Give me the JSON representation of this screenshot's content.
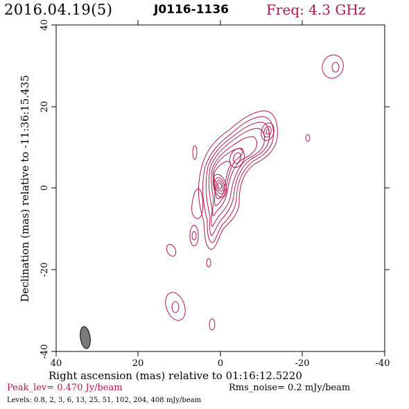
{
  "header": {
    "date": "2016.04.19(5)",
    "source": "J0116-1136",
    "frequency": "Freq: 4.3 GHz"
  },
  "axes": {
    "xlabel": "Right ascension (mas) relative to 01:16:12.5220",
    "ylabel": "Declination (mas) relative to -11:36:15.435",
    "x_ticks": [
      "40",
      "20",
      "0",
      "-20",
      "-40"
    ],
    "y_ticks": [
      "40",
      "20",
      "0",
      "-20",
      "-40"
    ]
  },
  "footer": {
    "peak": "Peak_lev=  0.470 Jy/beam",
    "rms": "Rms_noise=  0.2 mJy/beam",
    "levels": "Levels: 0.8,   2,   3,   6,  13,  25,  51, 102, 204, 408 mJy/beam"
  },
  "colors": {
    "contour": "#b0184a",
    "beam": "#777777",
    "accent": "#b0184a"
  }
}
